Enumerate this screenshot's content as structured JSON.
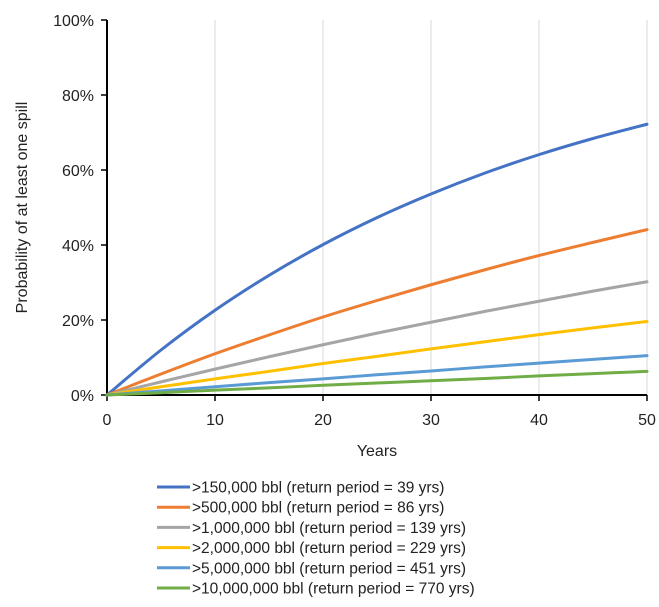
{
  "chart_data": {
    "type": "line",
    "title": "",
    "xlabel": "Years",
    "ylabel": "Probability of at least one spill",
    "xlim": [
      0,
      50
    ],
    "ylim": [
      0,
      100
    ],
    "x_ticks": [
      "0",
      "10",
      "20",
      "30",
      "40",
      "50"
    ],
    "y_ticks": [
      "0%",
      "20%",
      "40%",
      "60%",
      "80%",
      "100%"
    ],
    "grid": "vertical",
    "legend_position": "bottom",
    "x": [
      0,
      5,
      10,
      15,
      20,
      25,
      30,
      35,
      40,
      45,
      50
    ],
    "series": [
      {
        "name": ">150,000 bbl (return period = 39 yrs)",
        "color": "#4472C4",
        "values": [
          0,
          12.0,
          22.6,
          31.9,
          40.1,
          47.3,
          53.6,
          59.2,
          64.1,
          68.4,
          72.2
        ]
      },
      {
        "name": ">500,000 bbl (return period = 86 yrs)",
        "color": "#ED7D31",
        "values": [
          0,
          5.6,
          11.0,
          16.0,
          20.8,
          25.2,
          29.4,
          33.4,
          37.2,
          40.7,
          44.1
        ]
      },
      {
        "name": ">1,000,000 bbl (return period = 139 yrs)",
        "color": "#A5A5A5",
        "values": [
          0,
          3.5,
          6.9,
          10.2,
          13.4,
          16.5,
          19.4,
          22.3,
          25.0,
          27.7,
          30.2
        ]
      },
      {
        "name": ">2,000,000 bbl (return period = 229 yrs)",
        "color": "#FFC000",
        "values": [
          0,
          2.2,
          4.3,
          6.3,
          8.4,
          10.3,
          12.3,
          14.2,
          16.1,
          17.9,
          19.6
        ]
      },
      {
        "name": ">5,000,000 bbl (return period = 451 yrs)",
        "color": "#5B9BD5",
        "values": [
          0,
          1.1,
          2.2,
          3.3,
          4.3,
          5.4,
          6.4,
          7.5,
          8.5,
          9.5,
          10.5
        ]
      },
      {
        "name": ">10,000,000 bbl (return period = 770 yrs)",
        "color": "#70AD47",
        "values": [
          0,
          0.6,
          1.3,
          1.9,
          2.6,
          3.2,
          3.8,
          4.4,
          5.1,
          5.7,
          6.3
        ]
      }
    ]
  }
}
